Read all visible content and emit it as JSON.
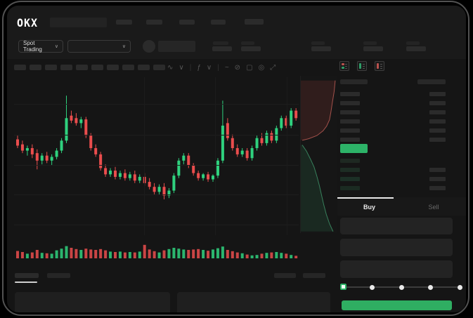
{
  "brand": {
    "logo_text": "OKX"
  },
  "market_bar": {
    "market_type": "Spot Trading",
    "chevron": "∨"
  },
  "toolbar": {
    "icons": [
      {
        "name": "chart-style-icon",
        "glyph": "∿"
      },
      {
        "name": "chart-style-chevron-icon",
        "glyph": "∨"
      },
      {
        "name": "toolbar-divider",
        "glyph": "|"
      },
      {
        "name": "function-icon",
        "glyph": "ƒ"
      },
      {
        "name": "function-chevron-icon",
        "glyph": "∨"
      },
      {
        "name": "toolbar-divider",
        "glyph": "|"
      },
      {
        "name": "indicator-icon",
        "glyph": "~"
      },
      {
        "name": "compare-icon",
        "glyph": "⊘"
      },
      {
        "name": "snapshot-icon",
        "glyph": "▢"
      },
      {
        "name": "settings-icon",
        "glyph": "◎"
      },
      {
        "name": "fullscreen-icon",
        "glyph": "⤢"
      }
    ]
  },
  "order_book": {
    "view_icons": [
      "combined-book-icon",
      "bids-only-icon",
      "asks-only-icon"
    ],
    "header": {
      "left_w": 39,
      "right_w": 40
    },
    "asks": [
      {
        "p": 28,
        "a": 23
      },
      {
        "p": 28,
        "a": 23
      },
      {
        "p": 28,
        "a": 23
      },
      {
        "p": 28,
        "a": 23
      },
      {
        "p": 28,
        "a": 23
      },
      {
        "p": 28,
        "a": 23
      }
    ],
    "last_price_bar": {
      "w": 39
    },
    "bids": [
      {
        "p": 28,
        "a": 0,
        "shade": "#1e2922"
      },
      {
        "p": 28,
        "a": 23,
        "shade": "#1d2d24"
      },
      {
        "p": 28,
        "a": 23,
        "shade": "#1c3026"
      },
      {
        "p": 28,
        "a": 23,
        "shade": "#1b2b22"
      }
    ]
  },
  "trade_panel": {
    "buy_tab": "Buy",
    "sell_tab": "Sell",
    "slider": {
      "stops": [
        0,
        25,
        50,
        75,
        100
      ],
      "value": 0
    }
  },
  "colors": {
    "up": "#2fd17e",
    "down": "#ea4d4d",
    "last_price": "#2db368",
    "buy_button": "#2fae62",
    "tab_active_underline": "#e9e9e9",
    "depth_ask_fill": "rgba(140,55,50,0.22)",
    "depth_ask_line": "rgba(205,100,92,0.75)",
    "depth_bid_fill": "rgba(45,120,82,0.20)",
    "depth_bid_line": "rgba(70,170,120,0.7)"
  },
  "chart_data": {
    "type": "candlestick",
    "units": "normalized-0-100 (no numeric axis labels visible)",
    "grid": "horizontal+vertical faint",
    "candles": [
      [
        57,
        60,
        50,
        52
      ],
      [
        53,
        56,
        46,
        48
      ],
      [
        48,
        52,
        44,
        50
      ],
      [
        50,
        53,
        42,
        45
      ],
      [
        46,
        49,
        33,
        40
      ],
      [
        40,
        46,
        37,
        44
      ],
      [
        44,
        47,
        38,
        40
      ],
      [
        40,
        45,
        36,
        43
      ],
      [
        43,
        50,
        41,
        48
      ],
      [
        48,
        58,
        46,
        56
      ],
      [
        56,
        92,
        54,
        74
      ],
      [
        76,
        80,
        70,
        72
      ],
      [
        74,
        78,
        68,
        70
      ],
      [
        70,
        75,
        66,
        73
      ],
      [
        73,
        75,
        58,
        60
      ],
      [
        60,
        62,
        48,
        50
      ],
      [
        50,
        53,
        43,
        45
      ],
      [
        45,
        47,
        32,
        34
      ],
      [
        34,
        37,
        27,
        29
      ],
      [
        29,
        34,
        27,
        32
      ],
      [
        32,
        35,
        25,
        27
      ],
      [
        27,
        32,
        25,
        30
      ],
      [
        30,
        33,
        24,
        26
      ],
      [
        26,
        31,
        24,
        29
      ],
      [
        29,
        32,
        22,
        24
      ],
      [
        24,
        29,
        22,
        27
      ],
      [
        27,
        30,
        20,
        22
      ],
      [
        23,
        26,
        17,
        19
      ],
      [
        19,
        22,
        13,
        15
      ],
      [
        15,
        21,
        13,
        19
      ],
      [
        19,
        22,
        9,
        12
      ],
      [
        12,
        18,
        10,
        16
      ],
      [
        16,
        30,
        14,
        28
      ],
      [
        28,
        42,
        26,
        40
      ],
      [
        40,
        46,
        37,
        44
      ],
      [
        44,
        46,
        34,
        36
      ],
      [
        36,
        38,
        28,
        30
      ],
      [
        30,
        32,
        24,
        26
      ],
      [
        26,
        30,
        24,
        29
      ],
      [
        29,
        31,
        23,
        25
      ],
      [
        25,
        29,
        23,
        28
      ],
      [
        28,
        42,
        26,
        40
      ],
      [
        40,
        88,
        38,
        68
      ],
      [
        70,
        74,
        56,
        58
      ],
      [
        58,
        61,
        48,
        50
      ],
      [
        50,
        53,
        43,
        45
      ],
      [
        45,
        50,
        43,
        48
      ],
      [
        48,
        50,
        40,
        42
      ],
      [
        42,
        52,
        40,
        50
      ],
      [
        50,
        60,
        48,
        58
      ],
      [
        58,
        62,
        52,
        54
      ],
      [
        54,
        64,
        52,
        62
      ],
      [
        62,
        64,
        54,
        56
      ],
      [
        56,
        68,
        54,
        66
      ],
      [
        66,
        76,
        64,
        74
      ],
      [
        74,
        76,
        66,
        68
      ],
      [
        68,
        82,
        66,
        80
      ],
      [
        80,
        82,
        72,
        74
      ]
    ],
    "volumes": [
      35,
      30,
      22,
      28,
      40,
      26,
      24,
      22,
      38,
      46,
      58,
      50,
      44,
      40,
      46,
      42,
      40,
      44,
      38,
      32,
      30,
      32,
      28,
      30,
      28,
      32,
      64,
      42,
      34,
      28,
      38,
      44,
      50,
      46,
      42,
      40,
      42,
      44,
      40,
      36,
      42,
      48,
      56,
      40,
      34,
      28,
      24,
      18,
      14,
      16,
      22,
      26,
      28,
      30,
      26,
      22,
      16,
      12
    ],
    "depth_profile": {
      "asks": [
        [
          96,
          3
        ],
        [
          93,
          10
        ],
        [
          88,
          17
        ],
        [
          84,
          23
        ],
        [
          80,
          28
        ],
        [
          72,
          32
        ],
        [
          62,
          35
        ],
        [
          45,
          38
        ],
        [
          22,
          40
        ],
        [
          4,
          41
        ]
      ],
      "bids": [
        [
          4,
          44
        ],
        [
          16,
          48
        ],
        [
          27,
          53
        ],
        [
          37,
          58
        ],
        [
          45,
          64
        ],
        [
          52,
          70
        ],
        [
          58,
          76
        ],
        [
          64,
          82
        ],
        [
          71,
          88
        ],
        [
          80,
          94
        ],
        [
          90,
          99
        ]
      ]
    }
  }
}
